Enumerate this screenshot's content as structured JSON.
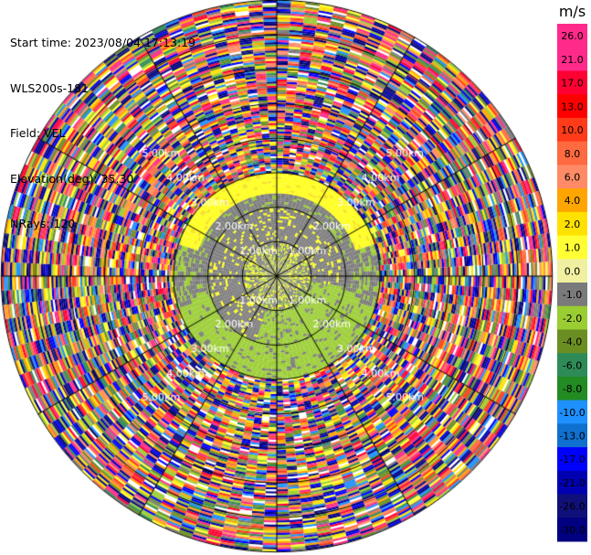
{
  "header": {
    "start_time": "Start time: 2023/08/04 17:13:19",
    "instrument": "WLS200s-181",
    "field": "Field: VEL",
    "elevation": "Elevation(deg): 35.30",
    "nrays": "NRays: 120"
  },
  "chart_data": {
    "type": "heatmap",
    "projection": "polar-ppi",
    "nrays": 120,
    "max_range_km": 8.0,
    "range_rings_km": [
      1.0,
      2.0,
      3.0,
      4.0,
      5.0,
      6.0,
      7.0,
      8.0
    ],
    "ring_labels": [
      "1.00km",
      "2.00km",
      "3.00km",
      "4.00km",
      "5.00km"
    ],
    "spokes": 12,
    "colorbar": {
      "unit": "m/s",
      "ticks": [
        "26.0",
        "21.0",
        "17.0",
        "13.0",
        "10.0",
        "8.0",
        "6.0",
        "4.0",
        "2.0",
        "1.0",
        "0.0",
        "-1.0",
        "-2.0",
        "-4.0",
        "-6.0",
        "-8.0",
        "-10.0",
        "-13.0",
        "-17.0",
        "-21.0",
        "-26.0",
        "-30.0"
      ],
      "colors": [
        "#ff2a8a",
        "#ff2a8a",
        "#ff0033",
        "#ff0000",
        "#ff3b1a",
        "#ff6a40",
        "#ff8a66",
        "#ffa500",
        "#ffe100",
        "#ffff33",
        "#f0f0a0",
        "#7a7a7a",
        "#9acd32",
        "#6b8e23",
        "#2e8b57",
        "#228b22",
        "#1e90ff",
        "#1070d0",
        "#0000ff",
        "#0000b0",
        "#10107a",
        "#000080"
      ]
    },
    "clean_region_km": 3.0,
    "noise_palette": [
      "#ff2a8a",
      "#ff0033",
      "#ffe100",
      "#ffff33",
      "#1e90ff",
      "#0000ff",
      "#10107a",
      "#000080",
      "#9acd32",
      "#2e8b57",
      "#ffa500",
      "#ff6a40",
      "#7a7a7a",
      "#ffffff",
      "#ff8a66",
      "#6b8e23",
      "#ff3b1a",
      "#0000b0"
    ]
  }
}
